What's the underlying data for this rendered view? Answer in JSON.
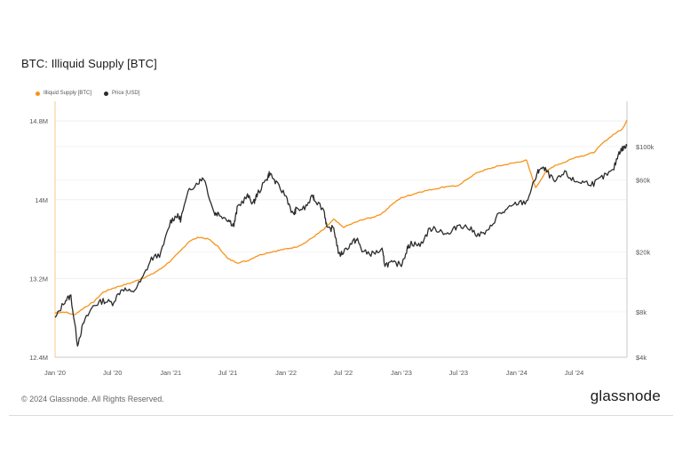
{
  "title": "BTC: Illiquid Supply [BTC]",
  "footer": {
    "copyright": "© 2024 Glassnode. All Rights Reserved.",
    "brand": "glassnode"
  },
  "colors": {
    "illiquid": "#f7931a",
    "price": "#2b2b2b",
    "grid": "#efefef",
    "axis": "#999999",
    "text": "#555555"
  },
  "chart_data": {
    "type": "line",
    "grid": true,
    "legend_position": "top-left",
    "x_tick_labels": [
      "Jan '20",
      "Jul '20",
      "Jan '21",
      "Jul '21",
      "Jan '22",
      "Jul '22",
      "Jan '23",
      "Jul '23",
      "Jan '24",
      "Jul '24"
    ],
    "x_range": [
      "2020-01-01",
      "2024-12-15"
    ],
    "y_left": {
      "label": "",
      "ticks": [
        "12.4M",
        "13.2M",
        "14M",
        "14.8M"
      ],
      "range": [
        12400000,
        15000000
      ]
    },
    "y_right": {
      "label": "",
      "scale": "log",
      "ticks": [
        "$4k",
        "$8k",
        "$20k",
        "$60k",
        "$100k"
      ],
      "tick_values": [
        4000,
        8000,
        20000,
        60000,
        100000
      ],
      "range": [
        4000,
        200000
      ]
    },
    "series": [
      {
        "name": "Illiquid Supply [BTC]",
        "axis": "left",
        "x": [
          "2020-01-01",
          "2020-02-01",
          "2020-03-01",
          "2020-04-01",
          "2020-05-01",
          "2020-06-01",
          "2020-07-01",
          "2020-08-01",
          "2020-09-01",
          "2020-10-01",
          "2020-11-01",
          "2020-12-01",
          "2021-01-01",
          "2021-02-01",
          "2021-03-01",
          "2021-04-01",
          "2021-05-01",
          "2021-06-01",
          "2021-07-01",
          "2021-08-01",
          "2021-09-01",
          "2021-10-01",
          "2021-11-01",
          "2021-12-01",
          "2022-01-01",
          "2022-02-01",
          "2022-03-01",
          "2022-04-01",
          "2022-05-01",
          "2022-06-01",
          "2022-07-01",
          "2022-08-01",
          "2022-09-01",
          "2022-10-01",
          "2022-11-01",
          "2022-12-01",
          "2023-01-01",
          "2023-02-01",
          "2023-03-01",
          "2023-04-01",
          "2023-05-01",
          "2023-06-01",
          "2023-07-01",
          "2023-08-01",
          "2023-09-01",
          "2023-10-01",
          "2023-11-01",
          "2023-12-01",
          "2024-01-01",
          "2024-02-01",
          "2024-03-01",
          "2024-04-01",
          "2024-05-01",
          "2024-06-01",
          "2024-07-01",
          "2024-08-01",
          "2024-09-01",
          "2024-10-01",
          "2024-11-01",
          "2024-12-01",
          "2024-12-15"
        ],
        "values": [
          12.85,
          12.86,
          12.83,
          12.9,
          12.96,
          13.06,
          13.1,
          13.13,
          13.16,
          13.2,
          13.24,
          13.3,
          13.38,
          13.48,
          13.58,
          13.62,
          13.6,
          13.52,
          13.4,
          13.36,
          13.38,
          13.43,
          13.46,
          13.48,
          13.5,
          13.52,
          13.56,
          13.63,
          13.7,
          13.8,
          13.72,
          13.76,
          13.8,
          13.82,
          13.86,
          13.95,
          14.02,
          14.05,
          14.08,
          14.1,
          14.12,
          14.14,
          14.14,
          14.22,
          14.28,
          14.31,
          14.34,
          14.36,
          14.38,
          14.4,
          14.12,
          14.28,
          14.35,
          14.38,
          14.43,
          14.45,
          14.48,
          14.58,
          14.66,
          14.72,
          14.81
        ]
      },
      {
        "name": "Price [USD]",
        "axis": "right",
        "x": [
          "2020-01-01",
          "2020-02-01",
          "2020-02-20",
          "2020-03-12",
          "2020-04-01",
          "2020-05-01",
          "2020-06-01",
          "2020-07-01",
          "2020-08-01",
          "2020-09-01",
          "2020-10-01",
          "2020-11-01",
          "2020-12-01",
          "2021-01-01",
          "2021-01-20",
          "2021-02-01",
          "2021-03-01",
          "2021-04-01",
          "2021-04-15",
          "2021-05-19",
          "2021-06-01",
          "2021-07-01",
          "2021-07-20",
          "2021-08-01",
          "2021-09-01",
          "2021-09-20",
          "2021-10-01",
          "2021-11-01",
          "2021-11-10",
          "2021-12-01",
          "2022-01-01",
          "2022-01-24",
          "2022-02-01",
          "2022-03-01",
          "2022-03-28",
          "2022-04-01",
          "2022-05-01",
          "2022-05-12",
          "2022-06-01",
          "2022-06-18",
          "2022-07-01",
          "2022-08-01",
          "2022-08-15",
          "2022-09-01",
          "2022-10-01",
          "2022-11-01",
          "2022-11-10",
          "2022-12-01",
          "2023-01-01",
          "2023-01-20",
          "2023-02-01",
          "2023-03-01",
          "2023-04-01",
          "2023-05-01",
          "2023-06-01",
          "2023-07-01",
          "2023-08-01",
          "2023-09-01",
          "2023-10-01",
          "2023-11-01",
          "2023-12-01",
          "2024-01-01",
          "2024-02-01",
          "2024-03-01",
          "2024-03-14",
          "2024-04-01",
          "2024-05-01",
          "2024-06-01",
          "2024-07-01",
          "2024-08-01",
          "2024-09-01",
          "2024-10-01",
          "2024-11-01",
          "2024-11-20",
          "2024-12-01",
          "2024-12-15"
        ],
        "values": [
          7200,
          9500,
          10200,
          4900,
          6800,
          8800,
          9500,
          9200,
          11500,
          10700,
          13000,
          18000,
          19500,
          32000,
          35000,
          33000,
          52000,
          59000,
          63000,
          36000,
          36000,
          33000,
          30000,
          40000,
          47000,
          42000,
          48000,
          61000,
          67000,
          57000,
          47000,
          35000,
          38000,
          39000,
          47000,
          45000,
          38000,
          28000,
          29000,
          19000,
          20000,
          23500,
          24000,
          20000,
          19500,
          20500,
          16500,
          16800,
          16600,
          21000,
          23000,
          22000,
          28500,
          28000,
          26000,
          30500,
          29000,
          26000,
          27000,
          35000,
          38000,
          42000,
          43000,
          62000,
          72000,
          70000,
          58000,
          67000,
          59000,
          58000,
          57000,
          63000,
          69000,
          92000,
          97000,
          101000
        ]
      }
    ]
  }
}
